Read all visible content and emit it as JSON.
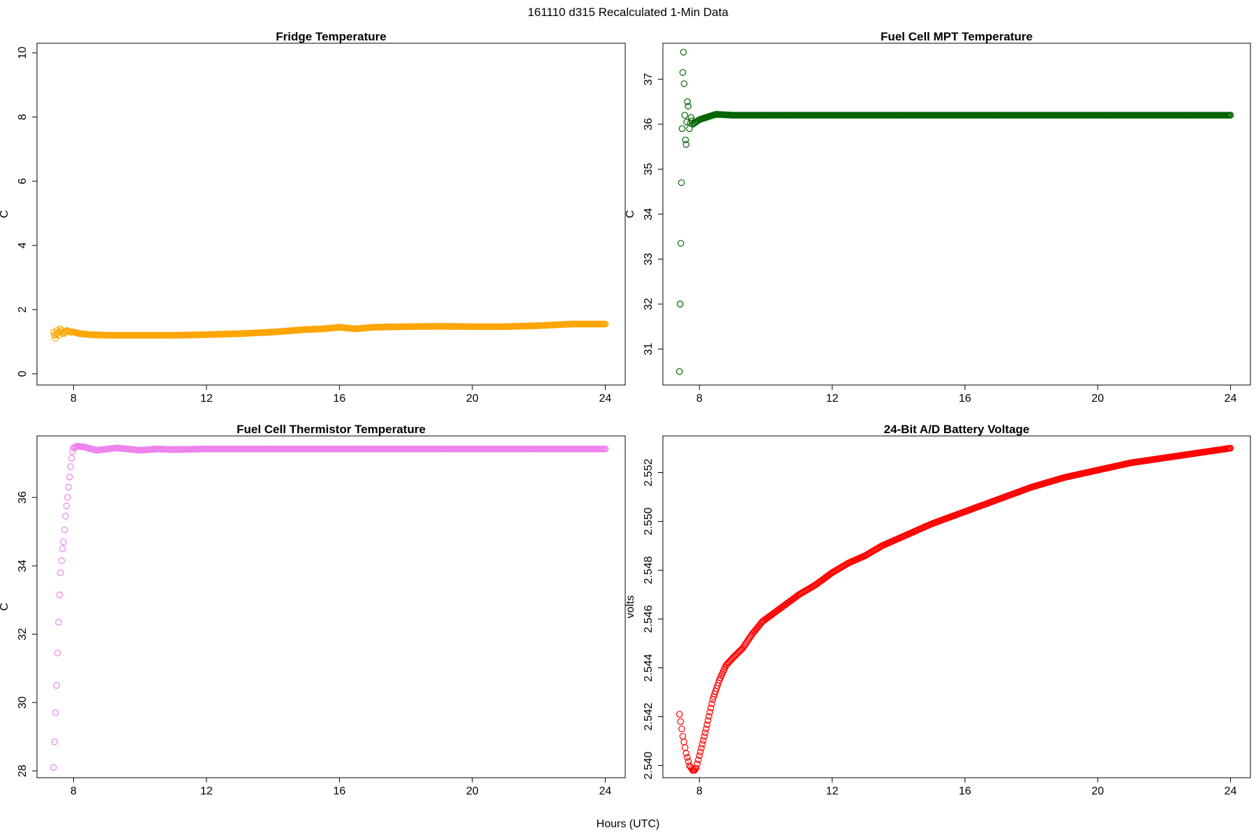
{
  "header": {
    "title": "161110   d315   Recalculated 1-Min Data",
    "xlabel": "Hours (UTC)"
  },
  "chart_data": [
    {
      "type": "scatter",
      "title": "Fridge Temperature",
      "xlabel": "",
      "ylabel": "C",
      "xlim": [
        6.9,
        24.6
      ],
      "ylim": [
        -0.35,
        10.3
      ],
      "xticks": [
        8,
        12,
        16,
        20,
        24
      ],
      "yticks": [
        0,
        2,
        4,
        6,
        8,
        10
      ],
      "color": "#FFA500",
      "x": [
        7.4,
        7.45,
        7.5,
        7.55,
        7.6,
        7.7,
        7.8,
        7.9,
        8.0,
        8.2,
        8.5,
        9.0,
        10.0,
        11.0,
        12.0,
        13.0,
        14.0,
        15.0,
        15.5,
        16.0,
        16.5,
        17.0,
        18.0,
        19.0,
        20.0,
        21.0,
        22.0,
        23.0,
        24.0
      ],
      "y": [
        1.3,
        1.1,
        1.35,
        1.2,
        1.4,
        1.25,
        1.35,
        1.3,
        1.3,
        1.25,
        1.22,
        1.2,
        1.2,
        1.2,
        1.22,
        1.25,
        1.3,
        1.38,
        1.4,
        1.45,
        1.4,
        1.45,
        1.47,
        1.48,
        1.47,
        1.47,
        1.5,
        1.55,
        1.55
      ]
    },
    {
      "type": "scatter",
      "title": "Fuel Cell MPT Temperature",
      "xlabel": "",
      "ylabel": "C",
      "xlim": [
        6.9,
        24.6
      ],
      "ylim": [
        30.2,
        37.8
      ],
      "xticks": [
        8,
        12,
        16,
        20,
        24
      ],
      "yticks": [
        31,
        32,
        33,
        34,
        35,
        36,
        37
      ],
      "color": "#006400",
      "x": [
        7.4,
        7.42,
        7.44,
        7.46,
        7.48,
        7.5,
        7.52,
        7.54,
        7.56,
        7.58,
        7.6,
        7.62,
        7.64,
        7.66,
        7.7,
        7.75,
        7.8,
        7.9,
        8.0,
        8.2,
        8.5,
        9.0,
        10.0,
        11.0,
        12.0,
        13.0,
        14.0,
        15.0,
        16.0,
        17.0,
        18.0,
        19.0,
        20.0,
        21.0,
        22.0,
        23.0,
        24.0
      ],
      "y": [
        30.5,
        32.0,
        33.35,
        34.7,
        35.9,
        37.15,
        37.6,
        36.9,
        36.2,
        35.65,
        35.55,
        36.05,
        36.5,
        36.4,
        35.9,
        36.15,
        36.0,
        36.05,
        36.1,
        36.15,
        36.22,
        36.2,
        36.2,
        36.2,
        36.2,
        36.2,
        36.2,
        36.2,
        36.2,
        36.2,
        36.2,
        36.2,
        36.2,
        36.2,
        36.2,
        36.2,
        36.2
      ]
    },
    {
      "type": "scatter",
      "title": "Fuel Cell Thermistor Temperature",
      "xlabel": "",
      "ylabel": "C",
      "xlim": [
        6.9,
        24.6
      ],
      "ylim": [
        27.8,
        37.8
      ],
      "xticks": [
        8,
        12,
        16,
        20,
        24
      ],
      "yticks": [
        28,
        30,
        32,
        34,
        36
      ],
      "color": "#EE82EE",
      "x": [
        7.4,
        7.43,
        7.46,
        7.49,
        7.52,
        7.55,
        7.58,
        7.61,
        7.64,
        7.67,
        7.7,
        7.73,
        7.76,
        7.79,
        7.82,
        7.85,
        7.88,
        7.91,
        7.94,
        7.97,
        8.0,
        8.1,
        8.3,
        8.7,
        9.3,
        10.0,
        10.5,
        11.0,
        12.0,
        13.0,
        14.0,
        15.0,
        16.0,
        17.0,
        18.0,
        19.0,
        20.0,
        21.0,
        22.0,
        23.0,
        24.0
      ],
      "y": [
        28.1,
        28.85,
        29.7,
        30.5,
        31.45,
        32.35,
        33.15,
        33.8,
        34.15,
        34.5,
        34.7,
        35.05,
        35.45,
        35.75,
        36.0,
        36.3,
        36.6,
        36.9,
        37.15,
        37.35,
        37.45,
        37.5,
        37.48,
        37.38,
        37.45,
        37.38,
        37.42,
        37.4,
        37.42,
        37.42,
        37.42,
        37.42,
        37.42,
        37.42,
        37.42,
        37.42,
        37.42,
        37.42,
        37.42,
        37.42,
        37.42
      ]
    },
    {
      "type": "scatter",
      "title": "24-Bit A/D Battery Voltage",
      "xlabel": "",
      "ylabel": "volts",
      "xlim": [
        6.9,
        24.6
      ],
      "ylim": [
        2.5395,
        2.5535
      ],
      "xticks": [
        8,
        12,
        16,
        20,
        24
      ],
      "yticks": [
        2.54,
        2.542,
        2.544,
        2.546,
        2.548,
        2.55,
        2.552
      ],
      "color": "#FF0000",
      "x": [
        7.4,
        7.5,
        7.6,
        7.7,
        7.8,
        7.85,
        7.9,
        8.0,
        8.2,
        8.4,
        8.6,
        8.8,
        9.0,
        9.3,
        9.6,
        9.9,
        10.2,
        10.6,
        11.0,
        11.5,
        12.0,
        12.5,
        13.0,
        13.5,
        14.0,
        15.0,
        16.0,
        17.0,
        18.0,
        19.0,
        20.0,
        21.0,
        22.0,
        23.0,
        24.0
      ],
      "y": [
        2.5421,
        2.5412,
        2.5405,
        2.54,
        2.5398,
        2.5398,
        2.5399,
        2.5404,
        2.5415,
        2.5427,
        2.5435,
        2.5441,
        2.5444,
        2.5448,
        2.5454,
        2.5459,
        2.5462,
        2.5466,
        2.547,
        2.5474,
        2.5479,
        2.5483,
        2.5486,
        2.549,
        2.5493,
        2.5499,
        2.5504,
        2.5509,
        2.5514,
        2.5518,
        2.5521,
        2.5524,
        2.5526,
        2.5528,
        2.553
      ]
    }
  ]
}
